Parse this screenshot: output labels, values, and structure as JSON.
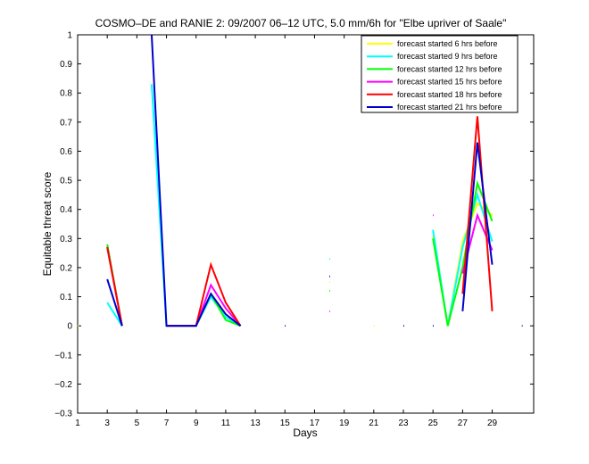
{
  "chart_data": {
    "type": "line",
    "title": "COSMO–DE and RANIE 2: 09/2007 06–12 UTC, 5.0 mm/6h for \"Elbe upriver of Saale\"",
    "xlabel": "Days",
    "ylabel": "Equitable threat score",
    "xlim": [
      1,
      31.8
    ],
    "ylim": [
      -0.3,
      1
    ],
    "xticks": [
      1,
      3,
      5,
      7,
      9,
      11,
      13,
      15,
      17,
      19,
      21,
      23,
      25,
      27,
      29
    ],
    "yticks": [
      -0.3,
      -0.2,
      -0.1,
      0,
      0.1,
      0.2,
      0.3,
      0.4,
      0.5,
      0.6,
      0.7,
      0.8,
      0.9,
      1
    ],
    "ytick_labels": [
      "−0.3",
      "−0.2",
      "−0.1",
      "0",
      "0.1",
      "0.2",
      "0.3",
      "0.4",
      "0.5",
      "0.6",
      "0.7",
      "0.8",
      "0.9",
      "1"
    ],
    "grid": false,
    "legend_position": "top-right",
    "series": [
      {
        "name": "forecast started 6 hrs before",
        "color": "#ffff00",
        "values": [
          [
            1,
            0
          ],
          [
            3,
            0.27
          ],
          [
            4,
            0
          ],
          [
            6,
            null
          ],
          [
            7,
            0
          ],
          [
            8,
            0
          ],
          [
            9,
            0
          ],
          [
            10,
            0.11
          ],
          [
            11,
            0.04
          ],
          [
            12,
            0
          ],
          [
            15,
            null
          ],
          [
            18,
            0.15
          ],
          [
            21,
            0
          ],
          [
            23,
            0
          ],
          [
            25,
            0.31
          ],
          [
            26,
            0
          ],
          [
            27,
            0.29
          ],
          [
            28,
            0.42
          ],
          [
            29,
            0.38
          ],
          [
            31,
            null
          ]
        ]
      },
      {
        "name": "forecast started 9 hrs before",
        "color": "#00ffff",
        "values": [
          [
            1,
            null
          ],
          [
            3,
            0.08
          ],
          [
            4,
            0
          ],
          [
            6,
            0.83
          ],
          [
            7,
            0
          ],
          [
            8,
            0
          ],
          [
            9,
            0
          ],
          [
            10,
            0.1
          ],
          [
            11,
            0.03
          ],
          [
            12,
            0
          ],
          [
            15,
            null
          ],
          [
            18,
            0.23
          ],
          [
            21,
            null
          ],
          [
            23,
            null
          ],
          [
            25,
            0.33
          ],
          [
            26,
            0
          ],
          [
            27,
            0.27
          ],
          [
            28,
            0.45
          ],
          [
            29,
            0.29
          ],
          [
            31,
            null
          ]
        ]
      },
      {
        "name": "forecast started 12 hrs before",
        "color": "#00ff00",
        "values": [
          [
            1,
            null
          ],
          [
            3,
            0.28
          ],
          [
            4,
            0
          ],
          [
            6,
            null
          ],
          [
            7,
            0
          ],
          [
            8,
            0
          ],
          [
            9,
            0
          ],
          [
            10,
            0.11
          ],
          [
            11,
            0.02
          ],
          [
            12,
            0
          ],
          [
            15,
            null
          ],
          [
            18,
            0.12
          ],
          [
            21,
            null
          ],
          [
            23,
            null
          ],
          [
            25,
            0.3
          ],
          [
            26,
            0
          ],
          [
            27,
            0.2
          ],
          [
            28,
            0.49
          ],
          [
            29,
            0.36
          ],
          [
            31,
            null
          ]
        ]
      },
      {
        "name": "forecast started 15 hrs before",
        "color": "#ff00ff",
        "values": [
          [
            1,
            null
          ],
          [
            3,
            0.27
          ],
          [
            4,
            0
          ],
          [
            6,
            null
          ],
          [
            7,
            0
          ],
          [
            8,
            0
          ],
          [
            9,
            0
          ],
          [
            10,
            0.14
          ],
          [
            11,
            0.06
          ],
          [
            12,
            0
          ],
          [
            15,
            null
          ],
          [
            18,
            0.05
          ],
          [
            21,
            null
          ],
          [
            23,
            null
          ],
          [
            25,
            0.38
          ],
          [
            26,
            null
          ],
          [
            27,
            0.18
          ],
          [
            28,
            0.38
          ],
          [
            29,
            0.26
          ],
          [
            31,
            null
          ]
        ]
      },
      {
        "name": "forecast started 18 hrs before",
        "color": "#ff0000",
        "values": [
          [
            1,
            null
          ],
          [
            3,
            0.27
          ],
          [
            4,
            0
          ],
          [
            6,
            null
          ],
          [
            7,
            0
          ],
          [
            8,
            0
          ],
          [
            9,
            0
          ],
          [
            10,
            0.21
          ],
          [
            11,
            0.08
          ],
          [
            12,
            0
          ],
          [
            15,
            null
          ],
          [
            18,
            null
          ],
          [
            21,
            null
          ],
          [
            23,
            null
          ],
          [
            25,
            null
          ],
          [
            26,
            null
          ],
          [
            27,
            0.11
          ],
          [
            28,
            0.72
          ],
          [
            29,
            0.05
          ],
          [
            31,
            null
          ]
        ]
      },
      {
        "name": "forecast started 21 hrs before",
        "color": "#0000cc",
        "values": [
          [
            1,
            null
          ],
          [
            3,
            0.16
          ],
          [
            4,
            0
          ],
          [
            6,
            1.0
          ],
          [
            7,
            0
          ],
          [
            8,
            0
          ],
          [
            9,
            0
          ],
          [
            10,
            0.11
          ],
          [
            11,
            0.04
          ],
          [
            12,
            0
          ],
          [
            15,
            0
          ],
          [
            18,
            0.17
          ],
          [
            21,
            null
          ],
          [
            23,
            0
          ],
          [
            25,
            0
          ],
          [
            26,
            null
          ],
          [
            27,
            0.05
          ],
          [
            28,
            0.63
          ],
          [
            29,
            0.21
          ],
          [
            31,
            0
          ]
        ]
      }
    ]
  }
}
